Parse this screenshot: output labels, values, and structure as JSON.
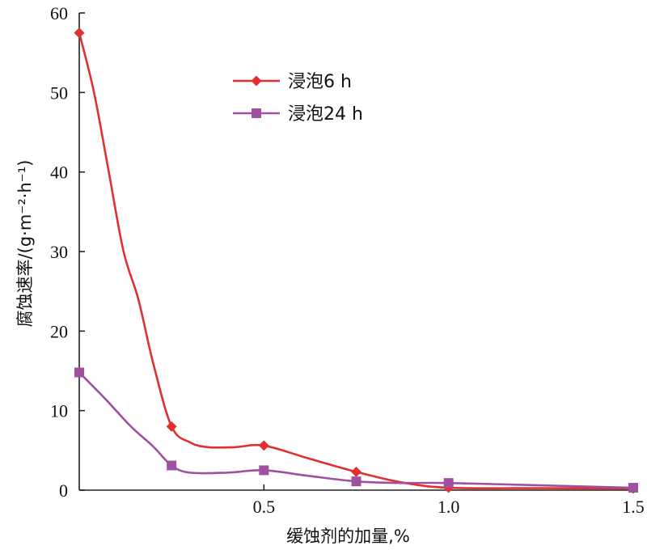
{
  "chart_data": {
    "type": "line",
    "xlabel": "缓蚀剂的加量,%",
    "ylabel": "腐蚀速率/(g·m⁻²·h⁻¹)",
    "xlim": [
      0,
      1.5
    ],
    "ylim": [
      0,
      60
    ],
    "x_ticks": [
      0.5,
      1.0,
      1.5
    ],
    "x_tick_labels": [
      "0.5",
      "1.0",
      "1.5"
    ],
    "y_ticks": [
      0,
      10,
      20,
      30,
      40,
      50,
      60
    ],
    "y_tick_labels": [
      "0",
      "10",
      "20",
      "30",
      "40",
      "50",
      "60"
    ],
    "grid": false,
    "legend_position": "top-center",
    "series": [
      {
        "name": "浸泡6 h",
        "color": "#e03030",
        "marker": "diamond",
        "markers": [
          {
            "x": 0,
            "y": 57.5
          },
          {
            "x": 0.25,
            "y": 8.0
          },
          {
            "x": 0.5,
            "y": 5.6
          },
          {
            "x": 0.75,
            "y": 2.3
          },
          {
            "x": 1.0,
            "y": 0.3
          },
          {
            "x": 1.5,
            "y": 0.2
          }
        ],
        "curve": [
          {
            "x": 0,
            "y": 57.5
          },
          {
            "x": 0.04,
            "y": 50
          },
          {
            "x": 0.08,
            "y": 40
          },
          {
            "x": 0.12,
            "y": 30
          },
          {
            "x": 0.16,
            "y": 24
          },
          {
            "x": 0.2,
            "y": 16
          },
          {
            "x": 0.25,
            "y": 8.0
          },
          {
            "x": 0.3,
            "y": 6.0
          },
          {
            "x": 0.35,
            "y": 5.4
          },
          {
            "x": 0.42,
            "y": 5.4
          },
          {
            "x": 0.5,
            "y": 5.6
          },
          {
            "x": 0.62,
            "y": 4.0
          },
          {
            "x": 0.75,
            "y": 2.3
          },
          {
            "x": 0.87,
            "y": 1.0
          },
          {
            "x": 1.0,
            "y": 0.3
          },
          {
            "x": 1.25,
            "y": 0.25
          },
          {
            "x": 1.5,
            "y": 0.2
          }
        ]
      },
      {
        "name": "浸泡24 h",
        "color": "#a050a0",
        "marker": "square",
        "markers": [
          {
            "x": 0,
            "y": 14.8
          },
          {
            "x": 0.25,
            "y": 3.1
          },
          {
            "x": 0.5,
            "y": 2.5
          },
          {
            "x": 0.75,
            "y": 1.1
          },
          {
            "x": 1.0,
            "y": 0.9
          },
          {
            "x": 1.5,
            "y": 0.3
          }
        ],
        "curve": [
          {
            "x": 0,
            "y": 14.8
          },
          {
            "x": 0.07,
            "y": 11.5
          },
          {
            "x": 0.14,
            "y": 8.0
          },
          {
            "x": 0.2,
            "y": 5.5
          },
          {
            "x": 0.25,
            "y": 3.1
          },
          {
            "x": 0.3,
            "y": 2.2
          },
          {
            "x": 0.4,
            "y": 2.2
          },
          {
            "x": 0.5,
            "y": 2.5
          },
          {
            "x": 0.62,
            "y": 1.8
          },
          {
            "x": 0.75,
            "y": 1.1
          },
          {
            "x": 0.87,
            "y": 0.9
          },
          {
            "x": 1.0,
            "y": 0.9
          },
          {
            "x": 1.25,
            "y": 0.6
          },
          {
            "x": 1.5,
            "y": 0.3
          }
        ]
      }
    ]
  }
}
